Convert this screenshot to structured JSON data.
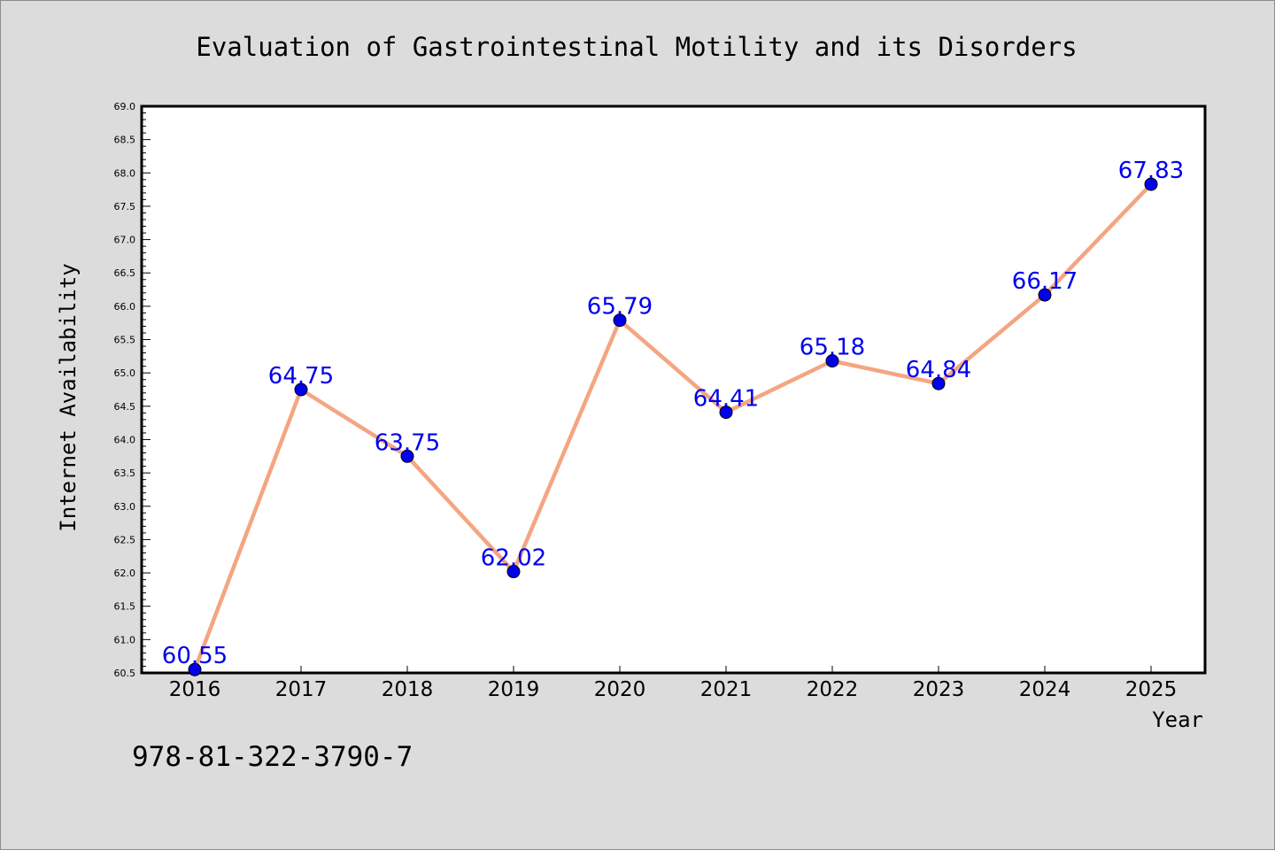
{
  "chart_data": {
    "type": "line",
    "title": "Evaluation of Gastrointestinal Motility and its Disorders",
    "xlabel": "Year",
    "ylabel": "Internet Availability",
    "x": [
      "2016",
      "2017",
      "2018",
      "2019",
      "2020",
      "2021",
      "2022",
      "2023",
      "2024",
      "2025"
    ],
    "values": [
      60.55,
      64.75,
      63.75,
      62.02,
      65.79,
      64.41,
      65.18,
      64.84,
      66.17,
      67.83
    ],
    "value_labels": [
      "60.55",
      "64.75",
      "63.75",
      "62.02",
      "65.79",
      "64.41",
      "65.18",
      "64.84",
      "66.17",
      "67.83"
    ],
    "ylim": [
      60.5,
      69.0
    ],
    "yticks": [
      "60.5",
      "61.0",
      "61.5",
      "62.0",
      "62.5",
      "63.0",
      "63.5",
      "64.0",
      "64.5",
      "65.0",
      "65.5",
      "66.0",
      "66.5",
      "67.0",
      "67.5",
      "68.0",
      "68.5",
      "69.0"
    ],
    "grid": false,
    "line_color": "#f4a582",
    "marker_color": "#0000ee",
    "label_color": "#0000ee"
  },
  "footer": {
    "isbn": "978-81-322-3790-7"
  }
}
